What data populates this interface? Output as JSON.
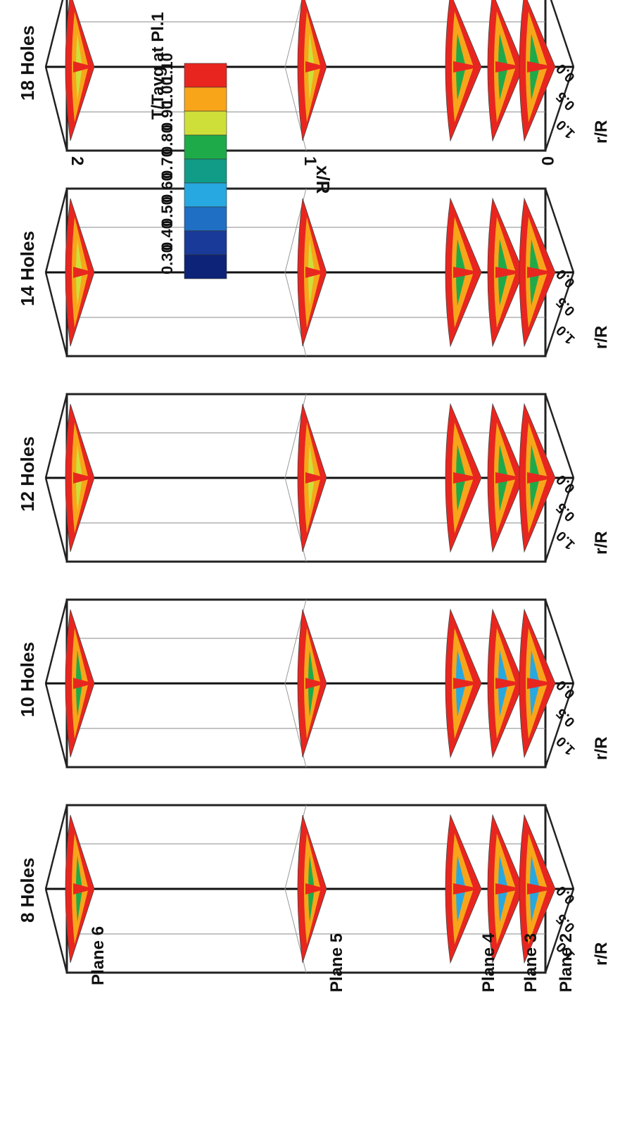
{
  "figure": {
    "panels": [
      {
        "title": "8 Holes"
      },
      {
        "title": "10 Holes"
      },
      {
        "title": "12 Holes"
      },
      {
        "title": "14 Holes"
      },
      {
        "title": "18 Holes"
      }
    ],
    "planes": [
      "Plane 6",
      "Plane 5",
      "Plane 4",
      "Plane 3",
      "Plane 2"
    ],
    "r_ticks": [
      "0.0",
      "0.5",
      "1.0"
    ],
    "r_label": "r/R",
    "x_label": "x/R",
    "x_ticks": [
      "0",
      "1",
      "2"
    ]
  },
  "colorbar": {
    "title": "T/Tavg at Pl.1",
    "levels": [
      "1.10",
      "1.00",
      "0.90",
      "0.80",
      "0.70",
      "0.60",
      "0.50",
      "0.40",
      "0.30"
    ],
    "colors": [
      "#e8261f",
      "#f9a51a",
      "#cfdf3a",
      "#1faa4a",
      "#109c86",
      "#27a8e0",
      "#1f6fc4",
      "#1a3a99",
      "#0d2377"
    ]
  }
}
